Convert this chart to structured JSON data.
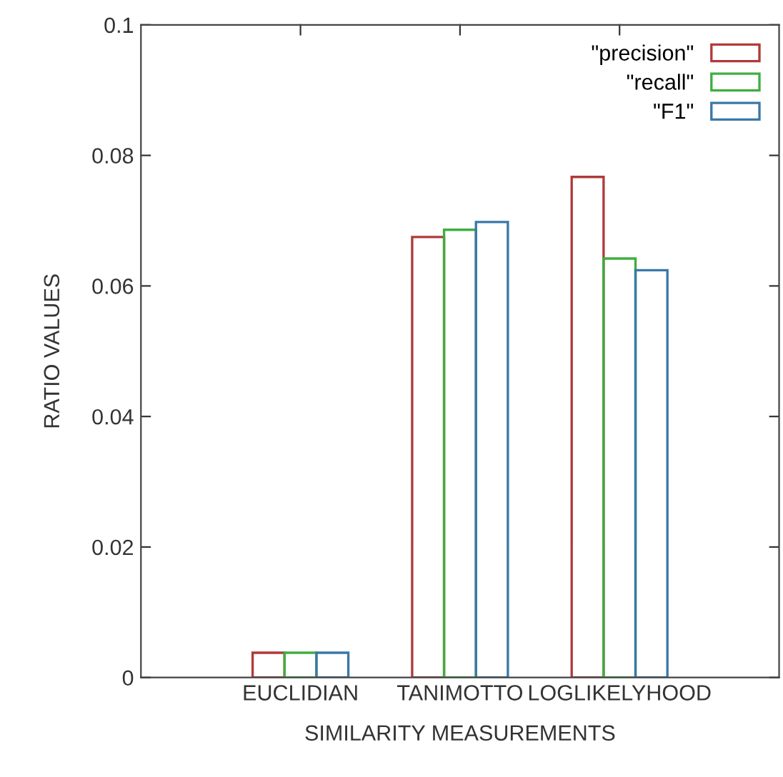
{
  "chart_data": {
    "type": "bar",
    "xlabel": "SIMILARITY MEASUREMENTS",
    "ylabel": "RATIO VALUES",
    "categories": [
      "EUCLIDIAN",
      "TANIMOTTO",
      "LOGLIKELYHOOD"
    ],
    "series": [
      {
        "name": "\"precision\"",
        "color": "#b03a3a",
        "values": [
          0.0038,
          0.0675,
          0.0767
        ]
      },
      {
        "name": "\"recall\"",
        "color": "#3fae3f",
        "values": [
          0.0038,
          0.0686,
          0.0642
        ]
      },
      {
        "name": "\"F1\"",
        "color": "#3a78a8",
        "values": [
          0.0038,
          0.0698,
          0.0624
        ]
      }
    ],
    "ylim": [
      0,
      0.1
    ],
    "yticks": [
      0,
      0.02,
      0.04,
      0.06,
      0.08,
      0.1
    ],
    "grid": false,
    "legend": "top right"
  }
}
